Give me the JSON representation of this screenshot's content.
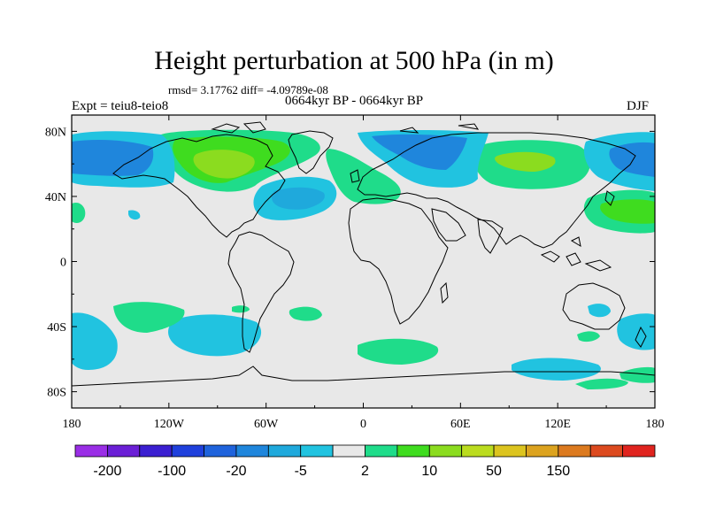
{
  "title": "Height perturbation at 500 hPa (in m)",
  "stats": "rmsd= 3.17762 diff= -4.09789e-08",
  "period": "0664kyr BP - 0664kyr BP",
  "expt": "Expt = teiu8-teio8",
  "season": "DJF",
  "map": {
    "projection": "cylindrical-equidistant",
    "lon_range": [
      -180,
      180
    ],
    "lat_range": [
      -90,
      90
    ],
    "x_ticks": [
      "180",
      "120W",
      "60W",
      "0",
      "60E",
      "120E",
      "180"
    ],
    "y_ticks": [
      "80N",
      "40N",
      "0",
      "40S",
      "80S"
    ],
    "background_color": "#e8e8e8",
    "coastline_color": "#000000"
  },
  "colorbar": {
    "colors": [
      "#9a2ee6",
      "#6b1fd6",
      "#3b1fd1",
      "#1f40dc",
      "#1f63dc",
      "#1f86dc",
      "#1fa9dc",
      "#21c3e0",
      "#e8e8e8",
      "#1fdc8a",
      "#3fdc1f",
      "#8bdc1f",
      "#bbdc1f",
      "#dcc41f",
      "#dca31f",
      "#dc7a1f",
      "#dc4a1f",
      "#e0241f"
    ],
    "labels": [
      "-200",
      "-100",
      "-20",
      "-5",
      "2",
      "10",
      "50",
      "150"
    ]
  }
}
